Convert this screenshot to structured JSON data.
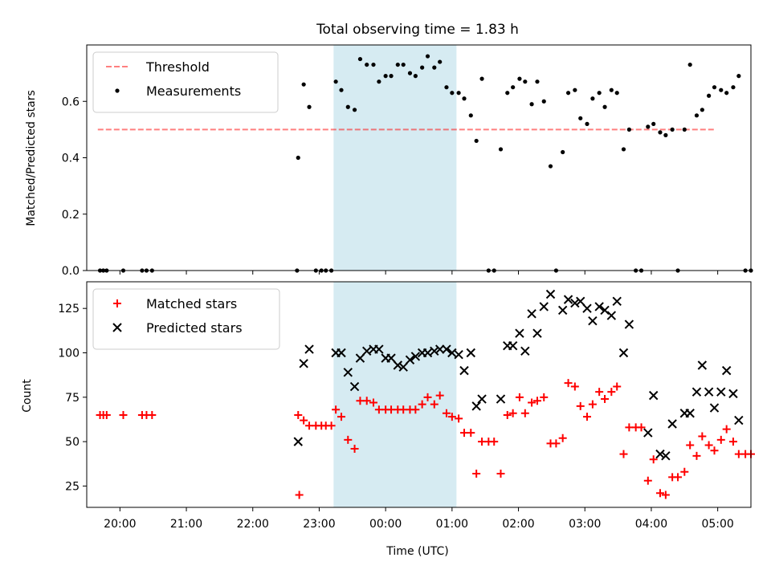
{
  "chart_data": [
    {
      "type": "scatter",
      "title": "Total observing time = 1.83 h",
      "ylabel": "Matched/Predicted stars",
      "xlabel": "",
      "xlim": [
        "19:30",
        "05:30"
      ],
      "ylim": [
        0,
        0.8
      ],
      "yticks": [
        0.0,
        0.2,
        0.4,
        0.6
      ],
      "ytick_labels": [
        "0.0",
        "0.2",
        "0.4",
        "0.6"
      ],
      "grid": false,
      "legend_position": "top-left",
      "shaded_interval": {
        "start": "23:13",
        "end": "01:04",
        "color": "#add8e6"
      },
      "threshold": {
        "name": "Threshold",
        "value": 0.5,
        "x_start": "19:40",
        "x_end": "04:58",
        "color": "#ff0000",
        "alpha": 0.5,
        "style": "dashed"
      },
      "series": [
        {
          "name": "Measurements",
          "marker": "dot",
          "color": "#000000",
          "points": [
            [
              "19:42",
              0
            ],
            [
              "19:45",
              0
            ],
            [
              "19:48",
              0
            ],
            [
              "20:03",
              0
            ],
            [
              "20:20",
              0
            ],
            [
              "20:24",
              0
            ],
            [
              "20:29",
              0
            ],
            [
              "22:40",
              0
            ],
            [
              "22:41",
              0.4
            ],
            [
              "22:46",
              0.66
            ],
            [
              "22:51",
              0.58
            ],
            [
              "22:57",
              0
            ],
            [
              "23:02",
              0
            ],
            [
              "23:06",
              0
            ],
            [
              "23:11",
              0
            ],
            [
              "23:15",
              0.67
            ],
            [
              "23:20",
              0.64
            ],
            [
              "23:26",
              0.58
            ],
            [
              "23:32",
              0.57
            ],
            [
              "23:37",
              0.75
            ],
            [
              "23:43",
              0.73
            ],
            [
              "23:49",
              0.73
            ],
            [
              "23:54",
              0.67
            ],
            [
              "00:00",
              0.69
            ],
            [
              "00:05",
              0.69
            ],
            [
              "00:11",
              0.73
            ],
            [
              "00:16",
              0.73
            ],
            [
              "00:22",
              0.7
            ],
            [
              "00:27",
              0.69
            ],
            [
              "00:33",
              0.72
            ],
            [
              "00:38",
              0.76
            ],
            [
              "00:44",
              0.72
            ],
            [
              "00:49",
              0.74
            ],
            [
              "00:55",
              0.65
            ],
            [
              "01:00",
              0.63
            ],
            [
              "01:06",
              0.63
            ],
            [
              "01:11",
              0.61
            ],
            [
              "01:17",
              0.55
            ],
            [
              "01:22",
              0.46
            ],
            [
              "01:27",
              0.68
            ],
            [
              "01:33",
              0
            ],
            [
              "01:38",
              0
            ],
            [
              "01:44",
              0.43
            ],
            [
              "01:50",
              0.63
            ],
            [
              "01:55",
              0.65
            ],
            [
              "02:01",
              0.68
            ],
            [
              "02:06",
              0.67
            ],
            [
              "02:12",
              0.59
            ],
            [
              "02:17",
              0.67
            ],
            [
              "02:23",
              0.6
            ],
            [
              "02:29",
              0.37
            ],
            [
              "02:34",
              0
            ],
            [
              "02:40",
              0.42
            ],
            [
              "02:45",
              0.63
            ],
            [
              "02:51",
              0.64
            ],
            [
              "02:56",
              0.54
            ],
            [
              "03:02",
              0.52
            ],
            [
              "03:07",
              0.61
            ],
            [
              "03:13",
              0.63
            ],
            [
              "03:18",
              0.58
            ],
            [
              "03:24",
              0.64
            ],
            [
              "03:29",
              0.63
            ],
            [
              "03:35",
              0.43
            ],
            [
              "03:40",
              0.5
            ],
            [
              "03:46",
              0
            ],
            [
              "03:51",
              0
            ],
            [
              "03:57",
              0.51
            ],
            [
              "04:02",
              0.52
            ],
            [
              "04:08",
              0.49
            ],
            [
              "04:13",
              0.48
            ],
            [
              "04:19",
              0.5
            ],
            [
              "04:24",
              0
            ],
            [
              "04:30",
              0.5
            ],
            [
              "04:35",
              0.73
            ],
            [
              "04:41",
              0.55
            ],
            [
              "04:46",
              0.57
            ],
            [
              "04:52",
              0.62
            ],
            [
              "04:57",
              0.65
            ],
            [
              "05:03",
              0.64
            ],
            [
              "05:08",
              0.63
            ],
            [
              "05:14",
              0.65
            ],
            [
              "05:19",
              0.69
            ],
            [
              "05:25",
              0
            ],
            [
              "05:30",
              0
            ]
          ]
        }
      ]
    },
    {
      "type": "scatter",
      "title": "",
      "ylabel": "Count",
      "xlabel": "Time (UTC)",
      "xlim": [
        "19:30",
        "05:30"
      ],
      "xtick_labels": [
        "20:00",
        "21:00",
        "22:00",
        "23:00",
        "00:00",
        "01:00",
        "02:00",
        "03:00",
        "04:00",
        "05:00"
      ],
      "ylim": [
        13,
        140
      ],
      "yticks": [
        25,
        50,
        75,
        100,
        125
      ],
      "ytick_labels": [
        "25",
        "50",
        "75",
        "100",
        "125"
      ],
      "grid": false,
      "legend_position": "top-left",
      "shaded_interval": {
        "start": "23:13",
        "end": "01:04",
        "color": "#add8e6"
      },
      "series": [
        {
          "name": "Matched stars",
          "marker": "plus",
          "color": "#ff0000",
          "points": [
            [
              "19:42",
              65
            ],
            [
              "19:45",
              65
            ],
            [
              "19:48",
              65
            ],
            [
              "20:03",
              65
            ],
            [
              "20:20",
              65
            ],
            [
              "20:24",
              65
            ],
            [
              "20:29",
              65
            ],
            [
              "22:41",
              65
            ],
            [
              "22:42",
              20
            ],
            [
              "22:46",
              62
            ],
            [
              "22:51",
              59
            ],
            [
              "22:57",
              59
            ],
            [
              "23:02",
              59
            ],
            [
              "23:06",
              59
            ],
            [
              "23:11",
              59
            ],
            [
              "23:15",
              68
            ],
            [
              "23:20",
              64
            ],
            [
              "23:26",
              51
            ],
            [
              "23:32",
              46
            ],
            [
              "23:37",
              73
            ],
            [
              "23:43",
              73
            ],
            [
              "23:49",
              72
            ],
            [
              "23:54",
              68
            ],
            [
              "00:00",
              68
            ],
            [
              "00:05",
              68
            ],
            [
              "00:11",
              68
            ],
            [
              "00:16",
              68
            ],
            [
              "00:22",
              68
            ],
            [
              "00:27",
              68
            ],
            [
              "00:33",
              71
            ],
            [
              "00:38",
              75
            ],
            [
              "00:44",
              71
            ],
            [
              "00:49",
              76
            ],
            [
              "00:55",
              66
            ],
            [
              "01:00",
              64
            ],
            [
              "01:06",
              63
            ],
            [
              "01:11",
              55
            ],
            [
              "01:17",
              55
            ],
            [
              "01:22",
              32
            ],
            [
              "01:27",
              50
            ],
            [
              "01:33",
              50
            ],
            [
              "01:38",
              50
            ],
            [
              "01:44",
              32
            ],
            [
              "01:50",
              65
            ],
            [
              "01:55",
              66
            ],
            [
              "02:01",
              75
            ],
            [
              "02:06",
              66
            ],
            [
              "02:12",
              72
            ],
            [
              "02:17",
              73
            ],
            [
              "02:23",
              75
            ],
            [
              "02:29",
              49
            ],
            [
              "02:34",
              49
            ],
            [
              "02:40",
              52
            ],
            [
              "02:45",
              83
            ],
            [
              "02:51",
              81
            ],
            [
              "02:56",
              70
            ],
            [
              "03:02",
              64
            ],
            [
              "03:07",
              71
            ],
            [
              "03:13",
              78
            ],
            [
              "03:18",
              74
            ],
            [
              "03:24",
              78
            ],
            [
              "03:29",
              81
            ],
            [
              "03:35",
              43
            ],
            [
              "03:40",
              58
            ],
            [
              "03:46",
              58
            ],
            [
              "03:51",
              58
            ],
            [
              "03:57",
              28
            ],
            [
              "04:02",
              40
            ],
            [
              "04:08",
              21
            ],
            [
              "04:13",
              20
            ],
            [
              "04:19",
              30
            ],
            [
              "04:24",
              30
            ],
            [
              "04:30",
              33
            ],
            [
              "04:35",
              48
            ],
            [
              "04:41",
              42
            ],
            [
              "04:46",
              53
            ],
            [
              "04:52",
              48
            ],
            [
              "04:57",
              45
            ],
            [
              "05:03",
              51
            ],
            [
              "05:08",
              57
            ],
            [
              "05:14",
              50
            ],
            [
              "05:19",
              43
            ],
            [
              "05:25",
              43
            ],
            [
              "05:30",
              43
            ]
          ]
        },
        {
          "name": "Predicted stars",
          "marker": "x",
          "color": "#000000",
          "points": [
            [
              "22:41",
              50
            ],
            [
              "22:46",
              94
            ],
            [
              "22:51",
              102
            ],
            [
              "23:15",
              100
            ],
            [
              "23:20",
              100
            ],
            [
              "23:26",
              89
            ],
            [
              "23:32",
              81
            ],
            [
              "23:37",
              97
            ],
            [
              "23:43",
              101
            ],
            [
              "23:49",
              102
            ],
            [
              "23:54",
              102
            ],
            [
              "00:00",
              97
            ],
            [
              "00:05",
              97
            ],
            [
              "00:11",
              93
            ],
            [
              "00:16",
              92
            ],
            [
              "00:22",
              96
            ],
            [
              "00:27",
              98
            ],
            [
              "00:33",
              100
            ],
            [
              "00:38",
              100
            ],
            [
              "00:44",
              101
            ],
            [
              "00:49",
              102
            ],
            [
              "00:55",
              102
            ],
            [
              "01:00",
              100
            ],
            [
              "01:06",
              99
            ],
            [
              "01:11",
              90
            ],
            [
              "01:17",
              100
            ],
            [
              "01:22",
              70
            ],
            [
              "01:27",
              74
            ],
            [
              "01:44",
              74
            ],
            [
              "01:50",
              104
            ],
            [
              "01:55",
              104
            ],
            [
              "02:01",
              111
            ],
            [
              "02:06",
              101
            ],
            [
              "02:12",
              122
            ],
            [
              "02:17",
              111
            ],
            [
              "02:23",
              126
            ],
            [
              "02:29",
              133
            ],
            [
              "02:40",
              124
            ],
            [
              "02:45",
              130
            ],
            [
              "02:51",
              128
            ],
            [
              "02:56",
              129
            ],
            [
              "03:02",
              125
            ],
            [
              "03:07",
              118
            ],
            [
              "03:13",
              126
            ],
            [
              "03:18",
              124
            ],
            [
              "03:24",
              121
            ],
            [
              "03:29",
              129
            ],
            [
              "03:35",
              100
            ],
            [
              "03:40",
              116
            ],
            [
              "03:57",
              55
            ],
            [
              "04:02",
              76
            ],
            [
              "04:08",
              43
            ],
            [
              "04:13",
              42
            ],
            [
              "04:19",
              60
            ],
            [
              "04:30",
              66
            ],
            [
              "04:35",
              66
            ],
            [
              "04:41",
              78
            ],
            [
              "04:46",
              93
            ],
            [
              "04:52",
              78
            ],
            [
              "04:57",
              69
            ],
            [
              "05:03",
              78
            ],
            [
              "05:08",
              90
            ],
            [
              "05:14",
              77
            ],
            [
              "05:19",
              62
            ]
          ]
        }
      ]
    }
  ]
}
